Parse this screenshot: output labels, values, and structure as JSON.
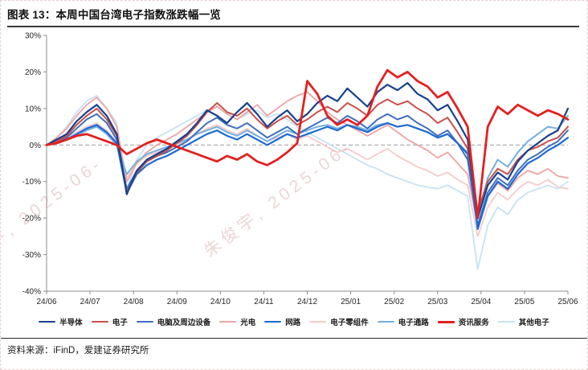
{
  "header": {
    "title": "图表 13：本周中国台湾电子指数涨跌幅一览"
  },
  "watermark": {
    "text": "朱俊宇, 2025-06-"
  },
  "footer": {
    "source": "资料来源：iFinD，爱建证券研究所"
  },
  "chart_data": {
    "type": "line",
    "title": "本周中国台湾电子指数涨跌幅一览",
    "xlabel": "",
    "ylabel": "",
    "y_unit": "%",
    "ylim": [
      -40,
      30
    ],
    "y_ticks": [
      30,
      20,
      10,
      0,
      -10,
      -20,
      -30,
      -40
    ],
    "x_labels": [
      "24/06",
      "24/07",
      "24/08",
      "24/09",
      "24/10",
      "24/11",
      "24/12",
      "25/01",
      "25/02",
      "25/03",
      "25/04",
      "25/05",
      "25/06"
    ],
    "grid": "dashed-zero-line-only",
    "legend_position": "bottom",
    "z_order": [
      8,
      5,
      3,
      6,
      2,
      4,
      1,
      0,
      7
    ],
    "series": [
      {
        "id": "semiconductor",
        "name": "半导体",
        "color": "#17418e",
        "width": 2.2,
        "values": [
          0,
          1.5,
          3,
          6.5,
          9,
          11,
          8,
          3,
          -13.5,
          -7,
          -4,
          -2.5,
          -1,
          1,
          3,
          6,
          9.5,
          8,
          6,
          9,
          11.5,
          8.5,
          5,
          7.5,
          9.5,
          6.5,
          8.5,
          11.5,
          13.5,
          12,
          15.5,
          13,
          10.5,
          14.5,
          16.5,
          15,
          17,
          14,
          12.5,
          9.5,
          11,
          6.5,
          1.5,
          -20,
          -11,
          -7.5,
          -9.5,
          -4.5,
          -1.5,
          0.5,
          2.5,
          4,
          10
        ]
      },
      {
        "id": "electronics",
        "name": "电子",
        "color": "#c9504b",
        "width": 2,
        "values": [
          0,
          1,
          2.5,
          5.5,
          8,
          10,
          7,
          2.5,
          -13,
          -7.5,
          -4.5,
          -3,
          -1.5,
          0.5,
          2.5,
          5.5,
          9,
          11.5,
          9,
          8,
          10,
          7,
          4.5,
          6.5,
          8,
          5.5,
          7,
          9,
          10.5,
          9,
          11.5,
          10,
          8,
          11,
          12.5,
          11,
          12,
          10,
          8.5,
          6,
          7.5,
          3.5,
          -1,
          -18,
          -10,
          -6.5,
          -8,
          -4,
          -1.5,
          -0.5,
          1,
          2,
          5
        ]
      },
      {
        "id": "computer-peripherals",
        "name": "电脑及周边设备",
        "color": "#3f6fbe",
        "width": 2,
        "values": [
          0,
          1,
          2,
          4.5,
          7,
          8.5,
          6,
          1.5,
          -12,
          -7,
          -4.5,
          -3,
          -2,
          -0.5,
          1,
          3.5,
          6,
          7.5,
          5.5,
          4.5,
          6,
          4,
          2,
          3.5,
          5,
          3,
          4.5,
          6,
          7.5,
          6,
          8,
          6.5,
          4.5,
          7,
          8.5,
          7,
          8,
          6,
          4.5,
          2.5,
          4,
          0.5,
          -4,
          -22,
          -13,
          -9,
          -11,
          -7,
          -4,
          -2.5,
          -0.5,
          1,
          4
        ]
      },
      {
        "id": "optoelectronics",
        "name": "光电",
        "color": "#f0a3a3",
        "width": 1.8,
        "values": [
          0,
          2,
          4.5,
          8,
          11,
          13,
          10,
          5,
          -10,
          -5,
          -2,
          0,
          1.5,
          3,
          5,
          7,
          9,
          10.5,
          8.5,
          7,
          9,
          11,
          8,
          10,
          12,
          13.5,
          14.5,
          12,
          9,
          7,
          5.5,
          4,
          2.5,
          4,
          5.5,
          3.5,
          1.5,
          0,
          -1.5,
          -3.5,
          -2,
          -5,
          -8,
          -22,
          -14,
          -10.5,
          -12.5,
          -9,
          -7,
          -8,
          -6.5,
          -8.5,
          -9
        ]
      },
      {
        "id": "network",
        "name": "网路",
        "color": "#1e6ad2",
        "width": 2.2,
        "values": [
          0,
          0.5,
          1.5,
          3,
          4.5,
          5.5,
          3.5,
          0.5,
          -13,
          -8,
          -5.5,
          -4,
          -3,
          -1.5,
          0,
          1.5,
          3,
          4,
          2.5,
          1.5,
          3,
          1.5,
          0,
          1.5,
          3,
          2,
          3,
          4,
          5,
          4,
          5.5,
          4.5,
          3.5,
          5,
          6,
          5,
          5.5,
          4.5,
          3.5,
          2,
          3,
          0.5,
          -2.5,
          -23,
          -14,
          -10,
          -12,
          -8,
          -5,
          -3.5,
          -1.5,
          0,
          2
        ]
      },
      {
        "id": "electronic-components",
        "name": "电子零组件",
        "color": "#f6caca",
        "width": 1.8,
        "values": [
          0,
          1,
          2,
          3.5,
          5,
          6,
          4,
          1,
          -9,
          -5,
          -3,
          -2,
          -1,
          0,
          1.5,
          3,
          4.5,
          5.5,
          4,
          3,
          4.5,
          2.5,
          1,
          2,
          3,
          1.5,
          2.5,
          1,
          -0.5,
          -2,
          -1,
          -2.5,
          -4,
          -2.5,
          -1,
          -3,
          -4.5,
          -6,
          -7,
          -8.5,
          -7.5,
          -9.5,
          -11,
          -25,
          -17,
          -13,
          -15,
          -12,
          -10,
          -11,
          -9.5,
          -11.5,
          -12
        ]
      },
      {
        "id": "electronics-distribution",
        "name": "电子通路",
        "color": "#74afe0",
        "width": 2,
        "values": [
          0,
          0.5,
          1.5,
          2.5,
          4,
          5,
          3,
          0,
          -8,
          -4.5,
          -2.5,
          -1.5,
          -0.5,
          0.5,
          1.5,
          3,
          4,
          5,
          3.5,
          2.5,
          4,
          2.5,
          1,
          2.5,
          4,
          3,
          4,
          5,
          5.5,
          4.5,
          5.5,
          5,
          4,
          5.5,
          6,
          5,
          5.5,
          4.5,
          3.5,
          2,
          3,
          0.5,
          -2,
          -20,
          -9,
          -4,
          -6,
          -2,
          1,
          3,
          5,
          4.5,
          8
        ]
      },
      {
        "id": "information-service",
        "name": "资讯服务",
        "color": "#e3201f",
        "width": 2.8,
        "values": [
          0,
          0.5,
          1.5,
          2.5,
          3,
          2,
          1,
          0,
          -2.5,
          -1,
          0.5,
          1.5,
          0.5,
          -0.5,
          -1.5,
          -2.5,
          -3.5,
          -4.5,
          -3,
          -4,
          -2.5,
          -4.5,
          -5.5,
          -4,
          -2,
          0.5,
          17.5,
          14,
          8,
          5.5,
          7,
          5.5,
          8,
          16,
          20.5,
          18.5,
          20,
          17.5,
          16,
          13,
          14.5,
          10,
          5,
          -20,
          5,
          10.5,
          8.5,
          11,
          9.5,
          8,
          9.5,
          8.5,
          7
        ]
      },
      {
        "id": "other-electronics",
        "name": "其他电子",
        "color": "#c7e2f3",
        "width": 1.8,
        "values": [
          0,
          2,
          5,
          9,
          12,
          13.5,
          10,
          6,
          -12,
          -4,
          0,
          2,
          3.5,
          5,
          6.5,
          8,
          9.5,
          10.5,
          8.5,
          7,
          8.5,
          9.5,
          7.5,
          8.5,
          7,
          5,
          3.5,
          2,
          0.5,
          -1,
          -2.5,
          -4,
          -5.5,
          -6.5,
          -8,
          -9,
          -10,
          -11,
          -11.5,
          -12,
          -11,
          -12.5,
          -14,
          -34,
          -22,
          -17,
          -19,
          -15,
          -13,
          -12,
          -11,
          -12,
          -10
        ]
      }
    ]
  }
}
